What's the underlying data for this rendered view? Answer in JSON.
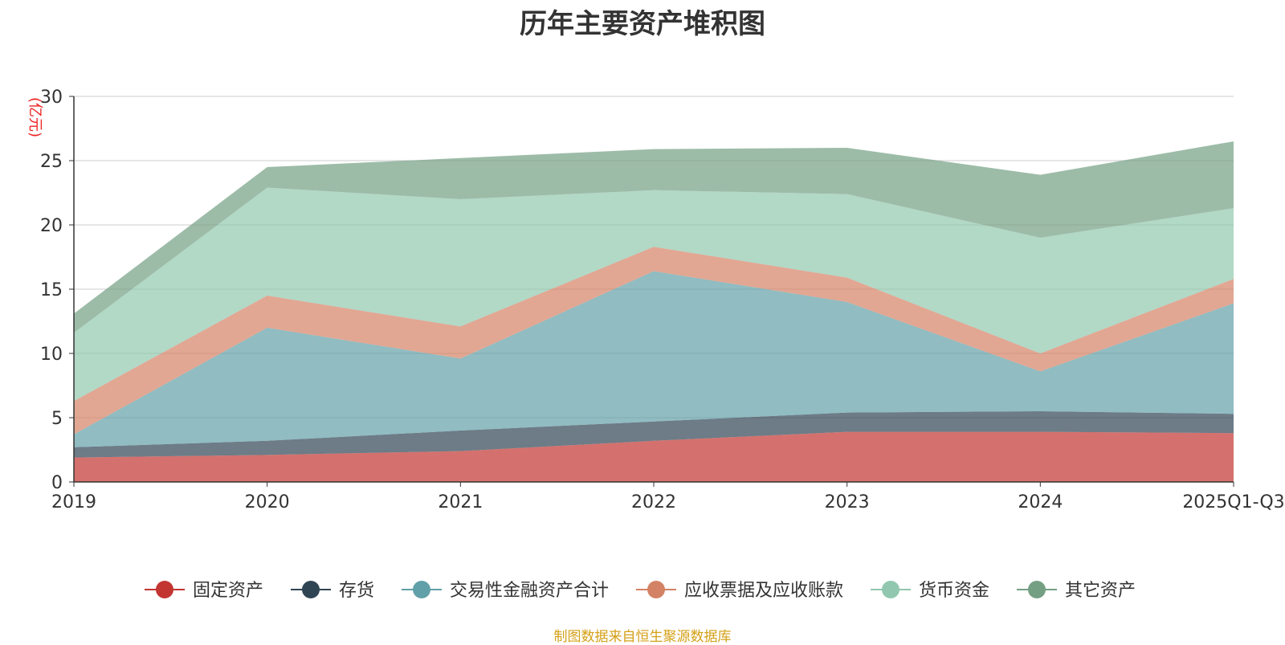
{
  "chart_data": {
    "type": "area",
    "stacked": true,
    "title": "历年主要资产堆积图",
    "ylabel": "(亿元)",
    "xlabel": "",
    "ylim": [
      0,
      30
    ],
    "yticks": [
      0,
      5,
      10,
      15,
      20,
      25,
      30
    ],
    "grid": true,
    "legend_position": "bottom",
    "categories": [
      "2019",
      "2020",
      "2021",
      "2022",
      "2023",
      "2024",
      "2025Q1-Q3"
    ],
    "series": [
      {
        "name": "固定资产",
        "color": "#c23531",
        "values": [
          1.9,
          2.1,
          2.4,
          3.2,
          3.9,
          3.9,
          3.8
        ]
      },
      {
        "name": "存货",
        "color": "#2f4554",
        "values": [
          0.8,
          1.1,
          1.6,
          1.5,
          1.5,
          1.6,
          1.5
        ]
      },
      {
        "name": "交易性金融资产合计",
        "color": "#61a0a8",
        "values": [
          1.0,
          8.8,
          5.6,
          11.7,
          8.6,
          3.1,
          8.6
        ]
      },
      {
        "name": "应收票据及应收账款",
        "color": "#d48265",
        "values": [
          2.6,
          2.5,
          2.5,
          1.9,
          1.9,
          1.4,
          1.9
        ]
      },
      {
        "name": "货币资金",
        "color": "#91c7ae",
        "values": [
          5.3,
          8.4,
          9.9,
          4.4,
          6.5,
          9.0,
          5.5
        ]
      },
      {
        "name": "其它资产",
        "color": "#749f83",
        "values": [
          1.5,
          1.6,
          3.2,
          3.2,
          3.6,
          4.9,
          5.2
        ]
      }
    ]
  },
  "footer": "制图数据来自恒生聚源数据库"
}
